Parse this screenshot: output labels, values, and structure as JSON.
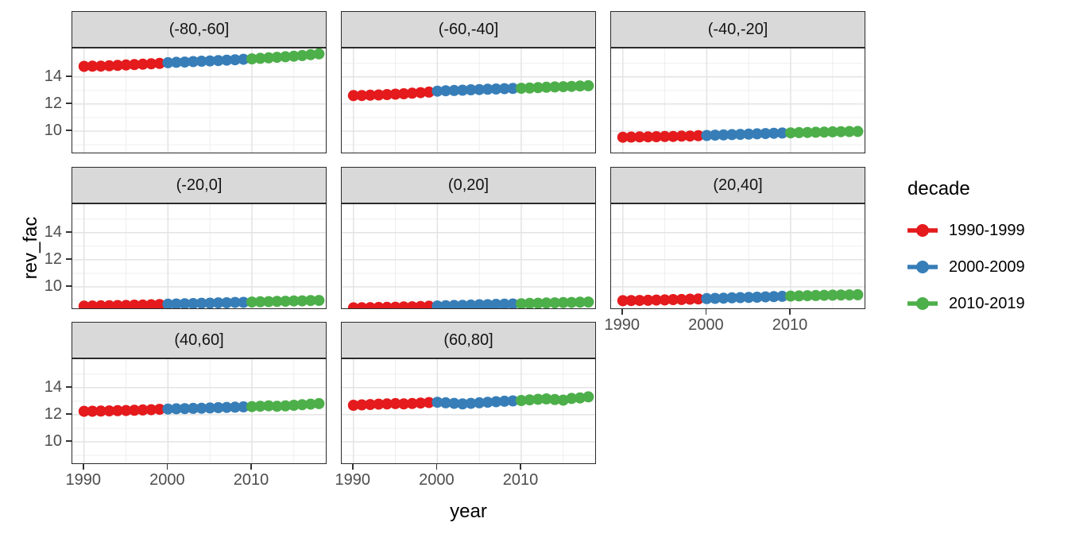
{
  "chart_data": {
    "type": "scatter",
    "title": "",
    "xlabel": "year",
    "ylabel": "rev_fac",
    "grid": true,
    "legend_position": "right",
    "legend": {
      "title": "decade",
      "entries": [
        {
          "label": "1990-1999",
          "color": "#E41A1C"
        },
        {
          "label": "2000-2009",
          "color": "#377EB8"
        },
        {
          "label": "2010-2019",
          "color": "#4DAF4A"
        }
      ]
    },
    "years": [
      1990,
      1991,
      1992,
      1993,
      1994,
      1995,
      1996,
      1997,
      1998,
      1999,
      2000,
      2001,
      2002,
      2003,
      2004,
      2005,
      2006,
      2007,
      2008,
      2009,
      2010,
      2011,
      2012,
      2013,
      2014,
      2015,
      2016,
      2017,
      2018
    ],
    "x_ticks": [
      1990,
      2000,
      2010
    ],
    "x_minor": [
      1995,
      2005,
      2015
    ],
    "y_ticks": [
      10,
      12,
      14
    ],
    "y_minor": [
      9,
      11,
      13,
      15
    ],
    "xlim": [
      1988.6,
      2019.0
    ],
    "ylim": [
      8.3,
      16.1
    ],
    "facets": [
      {
        "label": "(-80,-60]",
        "values": [
          14.78,
          14.79,
          14.8,
          14.82,
          14.85,
          14.88,
          14.91,
          14.94,
          14.97,
          15.0,
          15.05,
          15.08,
          15.1,
          15.13,
          15.16,
          15.18,
          15.21,
          15.24,
          15.27,
          15.3,
          15.33,
          15.37,
          15.41,
          15.45,
          15.49,
          15.53,
          15.58,
          15.64,
          15.7
        ]
      },
      {
        "label": "(-60,-40]",
        "values": [
          12.62,
          12.63,
          12.65,
          12.67,
          12.7,
          12.73,
          12.76,
          12.8,
          12.84,
          12.88,
          12.95,
          12.98,
          13.0,
          13.02,
          13.05,
          13.07,
          13.09,
          13.11,
          13.13,
          13.15,
          13.16,
          13.18,
          13.21,
          13.24,
          13.26,
          13.28,
          13.3,
          13.33,
          13.35
        ]
      },
      {
        "label": "(-40,-20]",
        "values": [
          9.55,
          9.56,
          9.57,
          9.58,
          9.59,
          9.6,
          9.61,
          9.63,
          9.64,
          9.66,
          9.68,
          9.7,
          9.72,
          9.74,
          9.76,
          9.78,
          9.8,
          9.82,
          9.84,
          9.86,
          9.87,
          9.89,
          9.9,
          9.92,
          9.93,
          9.95,
          9.96,
          9.97,
          9.98
        ]
      },
      {
        "label": "(-20,0]",
        "values": [
          8.58,
          8.59,
          8.6,
          8.61,
          8.62,
          8.63,
          8.65,
          8.66,
          8.68,
          8.7,
          8.72,
          8.74,
          8.76,
          8.77,
          8.79,
          8.8,
          8.82,
          8.83,
          8.85,
          8.86,
          8.88,
          8.9,
          8.91,
          8.93,
          8.94,
          8.96,
          8.97,
          8.99,
          9.0
        ]
      },
      {
        "label": "(0,20]",
        "values": [
          8.45,
          8.46,
          8.47,
          8.48,
          8.49,
          8.5,
          8.52,
          8.53,
          8.55,
          8.57,
          8.59,
          8.61,
          8.63,
          8.64,
          8.66,
          8.68,
          8.69,
          8.71,
          8.72,
          8.74,
          8.76,
          8.78,
          8.79,
          8.81,
          8.82,
          8.84,
          8.85,
          8.87,
          8.88
        ]
      },
      {
        "label": "(20,40]",
        "values": [
          8.98,
          8.99,
          9.0,
          9.01,
          9.03,
          9.04,
          9.06,
          9.07,
          9.09,
          9.11,
          9.13,
          9.15,
          9.17,
          9.19,
          9.21,
          9.22,
          9.24,
          9.26,
          9.28,
          9.3,
          9.32,
          9.33,
          9.35,
          9.36,
          9.38,
          9.39,
          9.4,
          9.41,
          9.42
        ]
      },
      {
        "label": "(40,60]",
        "values": [
          12.25,
          12.26,
          12.27,
          12.28,
          12.3,
          12.31,
          12.33,
          12.35,
          12.37,
          12.4,
          12.42,
          12.44,
          12.45,
          12.47,
          12.48,
          12.5,
          12.52,
          12.54,
          12.56,
          12.58,
          12.6,
          12.63,
          12.66,
          12.62,
          12.65,
          12.7,
          12.74,
          12.78,
          12.82
        ]
      },
      {
        "label": "(60,80]",
        "values": [
          12.7,
          12.73,
          12.75,
          12.78,
          12.8,
          12.82,
          12.8,
          12.83,
          12.86,
          12.9,
          12.92,
          12.88,
          12.84,
          12.8,
          12.84,
          12.88,
          12.92,
          12.96,
          13.0,
          13.02,
          13.05,
          13.1,
          13.14,
          13.17,
          13.12,
          13.08,
          13.2,
          13.24,
          13.32
        ]
      }
    ],
    "style": {
      "grid_major_color": "#e3e3e3",
      "grid_minor_color": "#ededed",
      "strip_fill": "#d9d9d9",
      "panel_border": "#2b2b2b",
      "tick_text_color": "#4d4d4d"
    }
  }
}
